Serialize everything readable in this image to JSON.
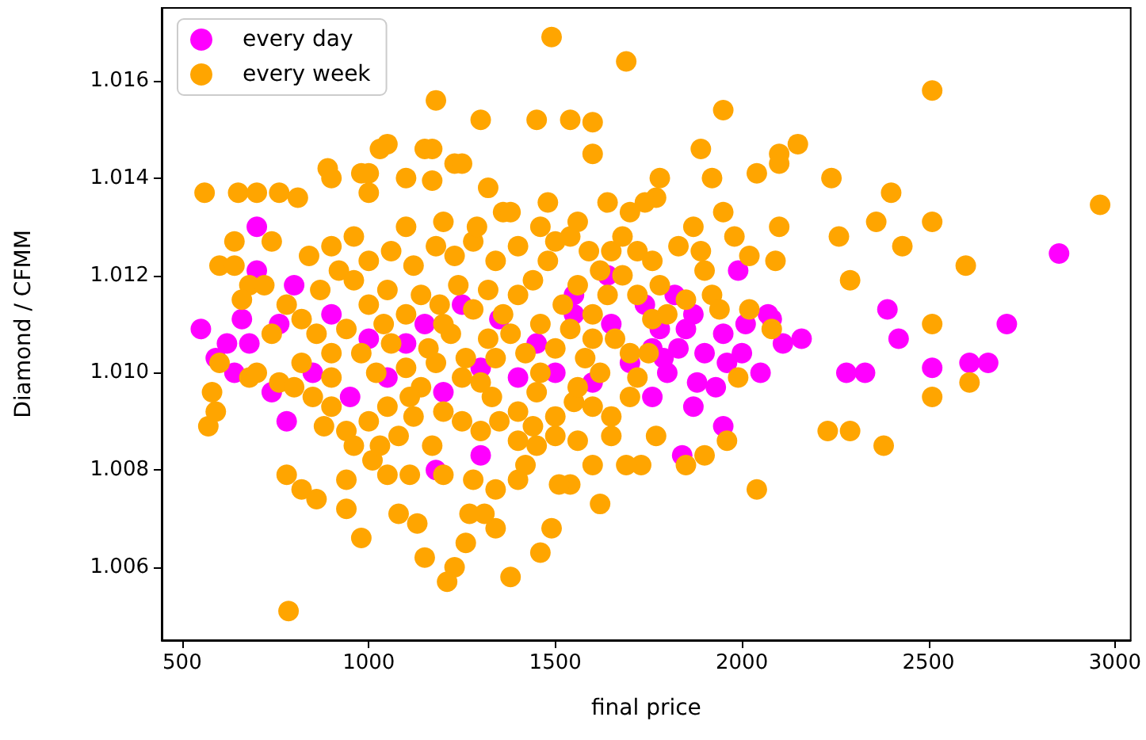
{
  "chart_data": {
    "type": "scatter",
    "xlabel": "final price",
    "ylabel": "Diamond / CFMM",
    "xlim": [
      445,
      3042
    ],
    "ylim": [
      1.0045,
      1.0175
    ],
    "xticks": [
      500,
      1000,
      1500,
      2000,
      2500,
      3000
    ],
    "yticks": [
      1.006,
      1.008,
      {
        "value": 1.01,
        "label": "1.010"
      },
      1.012,
      1.014,
      1.016
    ],
    "grid": false,
    "legend": "top left",
    "marker": "circle",
    "series": [
      {
        "name": "every day",
        "color": "#ff00ff",
        "x": [
          550,
          2850,
          2710,
          2660,
          2610,
          2510,
          2420,
          2390,
          2330,
          2280,
          2160,
          2110,
          2080,
          2070,
          1880,
          1840,
          1760,
          1790,
          1830,
          1760,
          1740,
          700,
          620,
          590,
          660,
          780,
          640,
          1850,
          1900,
          1950,
          1800,
          1870,
          1820,
          1780,
          1930,
          1960,
          2000,
          2050,
          1950,
          700,
          760,
          680,
          800,
          740,
          850,
          900,
          950,
          1000,
          1100,
          1150,
          1200,
          1300,
          1350,
          1400,
          1450,
          1500,
          1550,
          1600,
          1650,
          1700,
          1250,
          1050,
          1300,
          1180,
          1550,
          1640,
          2010,
          1990,
          1870
        ],
        "values": [
          1.0109,
          1.01245,
          1.011,
          1.0102,
          1.0102,
          1.0101,
          1.0107,
          1.0113,
          1.01,
          1.01,
          1.0107,
          1.0106,
          1.0111,
          1.0112,
          1.0098,
          1.0083,
          1.0095,
          1.0103,
          1.0105,
          1.0105,
          1.0114,
          1.013,
          1.0106,
          1.0103,
          1.0111,
          1.009,
          1.01,
          1.0109,
          1.0104,
          1.0108,
          1.01,
          1.0112,
          1.0116,
          1.0109,
          1.0097,
          1.0102,
          1.0104,
          1.01,
          1.0089,
          1.0121,
          1.011,
          1.0106,
          1.0118,
          1.0096,
          1.01,
          1.0112,
          1.0095,
          1.0107,
          1.0106,
          1.011,
          1.0096,
          1.0101,
          1.0111,
          1.0099,
          1.0106,
          1.01,
          1.0112,
          1.0098,
          1.011,
          1.0102,
          1.0114,
          1.0099,
          1.0083,
          1.008,
          1.0116,
          1.012,
          1.011,
          1.0121,
          1.0093
        ]
      },
      {
        "name": "every week",
        "color": "#ffa500",
        "x": [
          785,
          1490,
          1690,
          2510,
          2960,
          1450,
          1540,
          1600,
          1600,
          1300,
          1180,
          1950,
          2100,
          2100,
          2150,
          1890,
          1780,
          1920,
          2400,
          2040,
          1030,
          1050,
          980,
          1000,
          890,
          1230,
          1250,
          1150,
          1170,
          1640,
          1480,
          1360,
          1380,
          1100,
          1320,
          560,
          650,
          700,
          760,
          810,
          900,
          1170,
          1000,
          2240,
          2360,
          2510,
          2260,
          2430,
          2600,
          2100,
          2090,
          2020,
          1980,
          1950,
          1870,
          1890,
          1830,
          1770,
          1740,
          1700,
          1720,
          1760,
          1650,
          640,
          740,
          600,
          640,
          680,
          720,
          1850,
          1900,
          1960,
          2040,
          2230,
          2290,
          2380,
          2510,
          2610,
          2510,
          2290,
          1990,
          1920,
          2020,
          2080,
          1750,
          1760,
          1770,
          1730,
          1690,
          1650,
          1620,
          1540,
          1510,
          1560,
          1490,
          1460,
          1340,
          1380,
          1310,
          1270,
          1260,
          1230,
          1210,
          1150,
          1130,
          1080,
          980,
          940,
          940,
          860,
          820,
          780,
          1010,
          1050,
          1110,
          1170,
          1200,
          1280,
          1340,
          1400,
          1420,
          1450,
          1600,
          1500,
          1440,
          570,
          590,
          580,
          600,
          680,
          700,
          760,
          800,
          850,
          900,
          880,
          940,
          1000,
          960,
          1030,
          1080,
          1120,
          1200,
          1250,
          1300,
          1350,
          1400,
          1400,
          1500,
          1550,
          1600,
          1650,
          1700,
          1720,
          1700,
          1660,
          1620,
          1580,
          1540,
          1500,
          1460,
          1420,
          1380,
          1340,
          1300,
          1260,
          1220,
          1180,
          1140,
          1100,
          1060,
          1020,
          980,
          940,
          900,
          860,
          820,
          780,
          740,
          660,
          870,
          920,
          960,
          1000,
          1050,
          1100,
          1140,
          1190,
          1240,
          1280,
          1320,
          1360,
          1400,
          1440,
          1480,
          1520,
          1560,
          1600,
          1640,
          1680,
          1720,
          1780,
          1800,
          1850,
          1900,
          1940,
          1500,
          1400,
          1340,
          1280,
          1230,
          1180,
          1120,
          1060,
          1000,
          960,
          900,
          840,
          1100,
          1200,
          1290,
          1460,
          1540,
          1590,
          1620,
          1560,
          1680,
          1040,
          1200,
          1250,
          1330,
          1450,
          1560,
          1110,
          1050,
          900,
          820,
          1160,
          1320,
          1460,
          1600
        ],
        "values": [
          1.0051,
          1.0169,
          1.0164,
          1.0158,
          1.01345,
          1.0152,
          1.0152,
          1.01515,
          1.0145,
          1.0152,
          1.0156,
          1.0154,
          1.0145,
          1.0143,
          1.0147,
          1.0146,
          1.014,
          1.014,
          1.0137,
          1.0141,
          1.0146,
          1.0147,
          1.0141,
          1.0141,
          1.0142,
          1.0143,
          1.0143,
          1.0146,
          1.0146,
          1.0135,
          1.0135,
          1.0133,
          1.0133,
          1.014,
          1.0138,
          1.0137,
          1.0137,
          1.0137,
          1.0137,
          1.0136,
          1.014,
          1.01395,
          1.0137,
          1.014,
          1.0131,
          1.0131,
          1.0128,
          1.0126,
          1.0122,
          1.013,
          1.0123,
          1.0124,
          1.0128,
          1.0133,
          1.013,
          1.0125,
          1.0126,
          1.0136,
          1.0135,
          1.0133,
          1.0125,
          1.0123,
          1.0125,
          1.0127,
          1.0127,
          1.0122,
          1.0122,
          1.0118,
          1.0118,
          1.0081,
          1.0083,
          1.0086,
          1.0076,
          1.0088,
          1.0088,
          1.0085,
          1.0095,
          1.0098,
          1.011,
          1.0119,
          1.0099,
          1.0116,
          1.0113,
          1.0109,
          1.0104,
          1.0111,
          1.0087,
          1.0081,
          1.0081,
          1.0087,
          1.0073,
          1.0077,
          1.0077,
          1.0086,
          1.0068,
          1.0063,
          1.0068,
          1.0058,
          1.0071,
          1.0071,
          1.0065,
          1.006,
          1.0057,
          1.0062,
          1.0069,
          1.0071,
          1.0066,
          1.0072,
          1.0078,
          1.0074,
          1.0076,
          1.0079,
          1.0082,
          1.0079,
          1.0079,
          1.0085,
          1.0079,
          1.0078,
          1.0076,
          1.0078,
          1.0081,
          1.0085,
          1.0081,
          1.0087,
          1.0089,
          1.0089,
          1.0092,
          1.0096,
          1.0102,
          1.0099,
          1.01,
          1.0098,
          1.0097,
          1.0095,
          1.0093,
          1.0089,
          1.0088,
          1.009,
          1.0085,
          1.0085,
          1.0087,
          1.0091,
          1.0092,
          1.009,
          1.0088,
          1.009,
          1.0086,
          1.0092,
          1.0091,
          1.0094,
          1.0093,
          1.0091,
          1.0095,
          1.0099,
          1.0104,
          1.0107,
          1.01,
          1.0103,
          1.0109,
          1.0105,
          1.01,
          1.0104,
          1.0108,
          1.0103,
          1.0098,
          1.0103,
          1.0108,
          1.0102,
          1.0097,
          1.0101,
          1.0106,
          1.01,
          1.0104,
          1.0109,
          1.0104,
          1.0108,
          1.0111,
          1.0114,
          1.0108,
          1.0115,
          1.0117,
          1.0121,
          1.0119,
          1.0114,
          1.0117,
          1.0112,
          1.0116,
          1.0114,
          1.0118,
          1.0113,
          1.0117,
          1.0112,
          1.0116,
          1.0119,
          1.0123,
          1.0114,
          1.0118,
          1.0112,
          1.0116,
          1.012,
          1.0116,
          1.0118,
          1.0112,
          1.0115,
          1.0121,
          1.0113,
          1.0127,
          1.0126,
          1.0123,
          1.0127,
          1.0124,
          1.0126,
          1.0122,
          1.0125,
          1.0123,
          1.0128,
          1.0126,
          1.0124,
          1.013,
          1.0131,
          1.013,
          1.013,
          1.0128,
          1.0125,
          1.0121,
          1.0131,
          1.0128,
          1.011,
          1.011,
          1.0099,
          1.0095,
          1.0096,
          1.0097,
          1.0095,
          1.0093,
          1.0099,
          1.0102,
          1.0105,
          1.0107,
          1.011,
          1.0107
        ]
      }
    ]
  }
}
